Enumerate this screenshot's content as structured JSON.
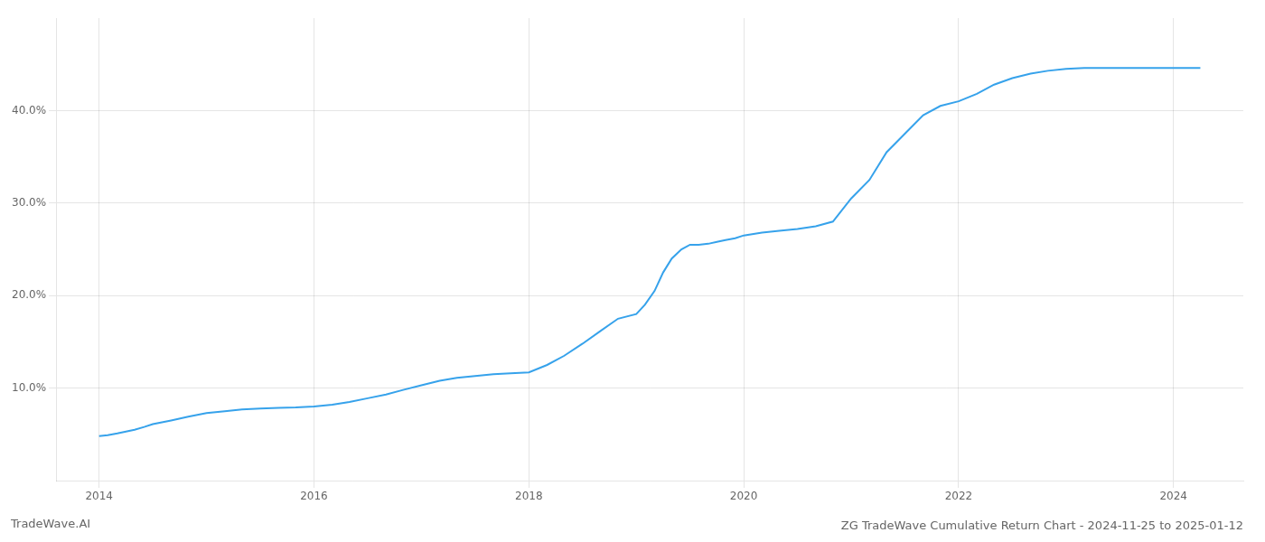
{
  "chart_data": {
    "type": "line",
    "title": "ZG TradeWave Cumulative Return Chart - 2024-11-25 to 2025-01-12",
    "annotations": [
      "TradeWave.AI"
    ],
    "x": [
      2014.0,
      2014.08,
      2014.17,
      2014.25,
      2014.33,
      2014.42,
      2014.5,
      2014.67,
      2014.83,
      2015.0,
      2015.17,
      2015.33,
      2015.5,
      2015.67,
      2015.83,
      2016.0,
      2016.17,
      2016.33,
      2016.5,
      2016.67,
      2016.83,
      2017.0,
      2017.17,
      2017.33,
      2017.5,
      2017.67,
      2017.83,
      2018.0,
      2018.17,
      2018.33,
      2018.5,
      2018.67,
      2018.83,
      2019.0,
      2019.08,
      2019.17,
      2019.25,
      2019.33,
      2019.42,
      2019.5,
      2019.58,
      2019.67,
      2019.75,
      2019.83,
      2019.92,
      2020.0,
      2020.17,
      2020.33,
      2020.5,
      2020.67,
      2020.83,
      2021.0,
      2021.17,
      2021.33,
      2021.5,
      2021.67,
      2021.83,
      2022.0,
      2022.17,
      2022.33,
      2022.5,
      2022.67,
      2022.83,
      2023.0,
      2023.17,
      2023.33,
      2023.5,
      2023.67,
      2023.83,
      2024.0,
      2024.17,
      2024.25
    ],
    "values": [
      4.8,
      4.9,
      5.1,
      5.3,
      5.5,
      5.8,
      6.1,
      6.5,
      6.9,
      7.3,
      7.5,
      7.7,
      7.8,
      7.85,
      7.9,
      8.0,
      8.2,
      8.5,
      8.9,
      9.3,
      9.8,
      10.3,
      10.8,
      11.1,
      11.3,
      11.5,
      11.6,
      11.7,
      12.5,
      13.5,
      14.8,
      16.2,
      17.5,
      18.0,
      19.0,
      20.5,
      22.5,
      24.0,
      25.0,
      25.5,
      25.5,
      25.6,
      25.8,
      26.0,
      26.2,
      26.5,
      26.8,
      27.0,
      27.2,
      27.5,
      28.0,
      30.5,
      32.5,
      35.5,
      37.5,
      39.5,
      40.5,
      41.0,
      41.8,
      42.8,
      43.5,
      44.0,
      44.3,
      44.5,
      44.6,
      44.6,
      44.6,
      44.6,
      44.6,
      44.6,
      44.6,
      44.6
    ],
    "xlim": [
      2013.6,
      2024.65
    ],
    "ylim": [
      0,
      50
    ],
    "xticks": [
      2014,
      2016,
      2018,
      2020,
      2022,
      2024
    ],
    "yticks": [
      {
        "value": 10.0,
        "label": "10.0%"
      },
      {
        "value": 20.0,
        "label": "20.0%"
      },
      {
        "value": 30.0,
        "label": "30.0%"
      },
      {
        "value": 40.0,
        "label": "40.0%"
      }
    ],
    "grid": true
  }
}
